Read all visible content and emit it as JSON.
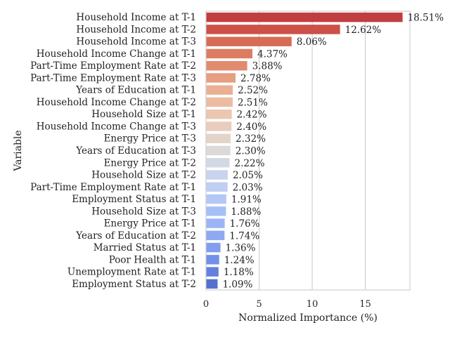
{
  "chart_data": {
    "type": "bar",
    "orientation": "horizontal",
    "xlabel": "Normalized Importance (%)",
    "ylabel": "Variable",
    "xlim": [
      0,
      19.2
    ],
    "xticks": [
      0,
      5,
      10,
      15
    ],
    "grid": "vertical",
    "categories": [
      "Household Income at T-1",
      "Household Income at T-2",
      "Household Income at T-3",
      "Household Income Change at T-1",
      "Part-Time Employment Rate at T-2",
      "Part-Time Employment Rate at T-3",
      "Years of Education at T-1",
      "Household Income Change at T-2",
      "Household Size at T-1",
      "Household Income Change at T-3",
      "Energy Price at T-3",
      "Years of Education at T-3",
      "Energy Price at T-2",
      "Household Size at T-2",
      "Part-Time Employment Rate at T-1",
      "Employment Status at T-1",
      "Household Size at T-3",
      "Energy Price at T-1",
      "Years of Education at T-2",
      "Married Status at T-1",
      "Poor Health at T-1",
      "Unemployment Rate at T-1",
      "Employment Status at T-2"
    ],
    "values": [
      18.51,
      12.62,
      8.06,
      4.37,
      3.88,
      2.78,
      2.52,
      2.51,
      2.42,
      2.4,
      2.32,
      2.3,
      2.22,
      2.05,
      2.03,
      1.91,
      1.88,
      1.76,
      1.74,
      1.36,
      1.24,
      1.18,
      1.09
    ],
    "value_labels": [
      "18.51%",
      "12.62%",
      "8.06%",
      "4.37%",
      "3.88%",
      "2.78%",
      "2.52%",
      "2.51%",
      "2.42%",
      "2.40%",
      "2.32%",
      "2.30%",
      "2.22%",
      "2.05%",
      "2.03%",
      "1.91%",
      "1.88%",
      "1.76%",
      "1.74%",
      "1.36%",
      "1.24%",
      "1.18%",
      "1.09%"
    ],
    "colors": [
      "#c23d3f",
      "#cc5148",
      "#d66c56",
      "#dc7d63",
      "#e18c6f",
      "#e69f80",
      "#ebb093",
      "#ecbca2",
      "#ecc6b1",
      "#e8cdbd",
      "#e3d4ca",
      "#dcd9d9",
      "#d3d9e4",
      "#c8d4ee",
      "#becff3",
      "#b3c8f6",
      "#a7bff7",
      "#9ab4f5",
      "#8da9f2",
      "#819df0",
      "#7290e8",
      "#6480dc",
      "#5470cd"
    ],
    "palette": "coolwarm (red to blue)"
  }
}
